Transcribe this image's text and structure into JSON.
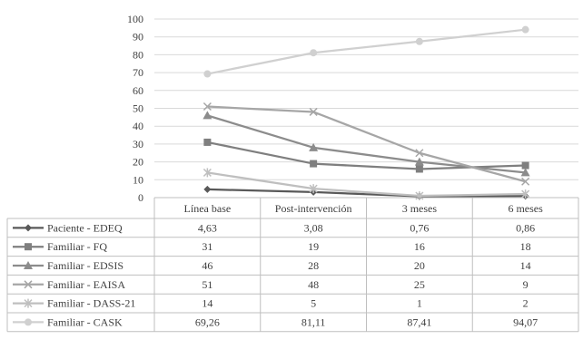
{
  "chart_data": {
    "type": "line",
    "title": "",
    "xlabel": "",
    "ylabel": "",
    "ylim": [
      0,
      100
    ],
    "y_ticks": [
      0,
      10,
      20,
      30,
      40,
      50,
      60,
      70,
      80,
      90,
      100
    ],
    "grid": true,
    "legend": "data-table-below",
    "categories": [
      "Línea base",
      "Post-intervención",
      "3 meses",
      "6 meses"
    ],
    "series": [
      {
        "name": "Paciente - EDEQ",
        "marker": "diamond",
        "color": "#595959",
        "values": [
          4.63,
          3.08,
          0.76,
          0.86
        ],
        "labels": [
          "4,63",
          "3,08",
          "0,76",
          "0,86"
        ]
      },
      {
        "name": "Familiar - FQ",
        "marker": "square",
        "color": "#7f7f7f",
        "values": [
          31,
          19,
          16,
          18
        ],
        "labels": [
          "31",
          "19",
          "16",
          "18"
        ]
      },
      {
        "name": "Familiar - EDSIS",
        "marker": "triangle",
        "color": "#8c8c8c",
        "values": [
          46,
          28,
          20,
          14
        ],
        "labels": [
          "46",
          "28",
          "20",
          "14"
        ]
      },
      {
        "name": "Familiar - EAISA",
        "marker": "x",
        "color": "#a6a6a6",
        "values": [
          51,
          48,
          25,
          9
        ],
        "labels": [
          "51",
          "48",
          "25",
          "9"
        ]
      },
      {
        "name": "Familiar - DASS-21",
        "marker": "star",
        "color": "#bfbfbf",
        "values": [
          14,
          5,
          1,
          2
        ],
        "labels": [
          "14",
          "5",
          "1",
          "2"
        ]
      },
      {
        "name": "Familiar - CASK",
        "marker": "circle",
        "color": "#d0d0d0",
        "values": [
          69.26,
          81.11,
          87.41,
          94.07
        ],
        "labels": [
          "69,26",
          "81,11",
          "87,41",
          "94,07"
        ]
      }
    ]
  }
}
